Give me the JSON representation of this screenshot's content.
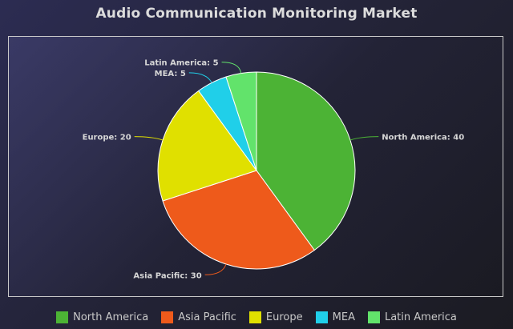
{
  "chart_data": {
    "type": "pie",
    "title": "Audio Communication Monitoring Market",
    "categories": [
      "North America",
      "Asia Pacific",
      "Europe",
      "MEA",
      "Latin America"
    ],
    "values": [
      40,
      30,
      20,
      5,
      5
    ],
    "colors": [
      "#4cb335",
      "#ee5a1b",
      "#e0e000",
      "#20cfe9",
      "#62e36b"
    ],
    "data_labels": [
      "North America: 40",
      "Asia Pacific: 30",
      "Europe: 20",
      "MEA: 5",
      "Latin America: 5"
    ],
    "start_angle_deg": 0,
    "direction": "clockwise",
    "legend_position": "bottom"
  }
}
